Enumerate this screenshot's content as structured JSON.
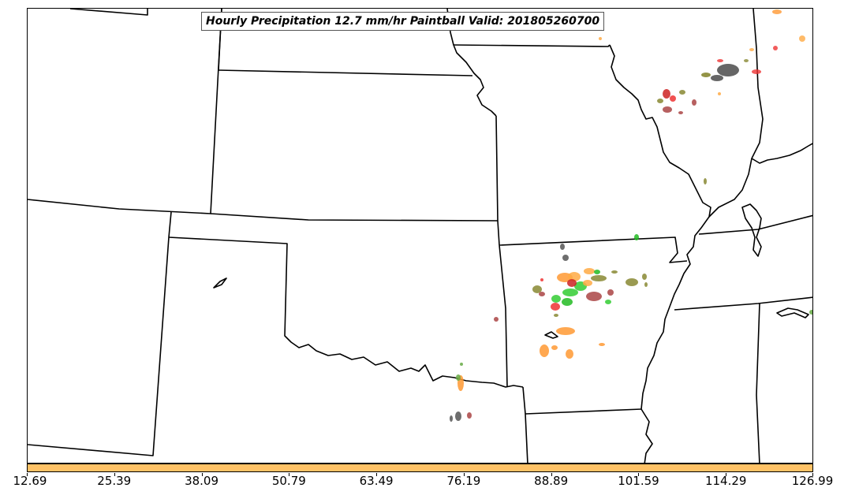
{
  "title": "Hourly Precipitation 12.7 mm/hr Paintball Valid: 201805260700",
  "colorbar": {
    "color": "#ffc266",
    "tick_labels": [
      "12.69",
      "25.39",
      "38.09",
      "50.79",
      "63.49",
      "76.19",
      "88.89",
      "101.59",
      "114.29",
      "126.99"
    ]
  },
  "colors": {
    "boundary": "#000000",
    "member_colors": [
      "#ff9933",
      "#ffaa44",
      "#ee3333",
      "#cc2222",
      "#22bb22",
      "#33cc33",
      "#555555",
      "#888833",
      "#aa4444",
      "#66aa44"
    ]
  }
}
